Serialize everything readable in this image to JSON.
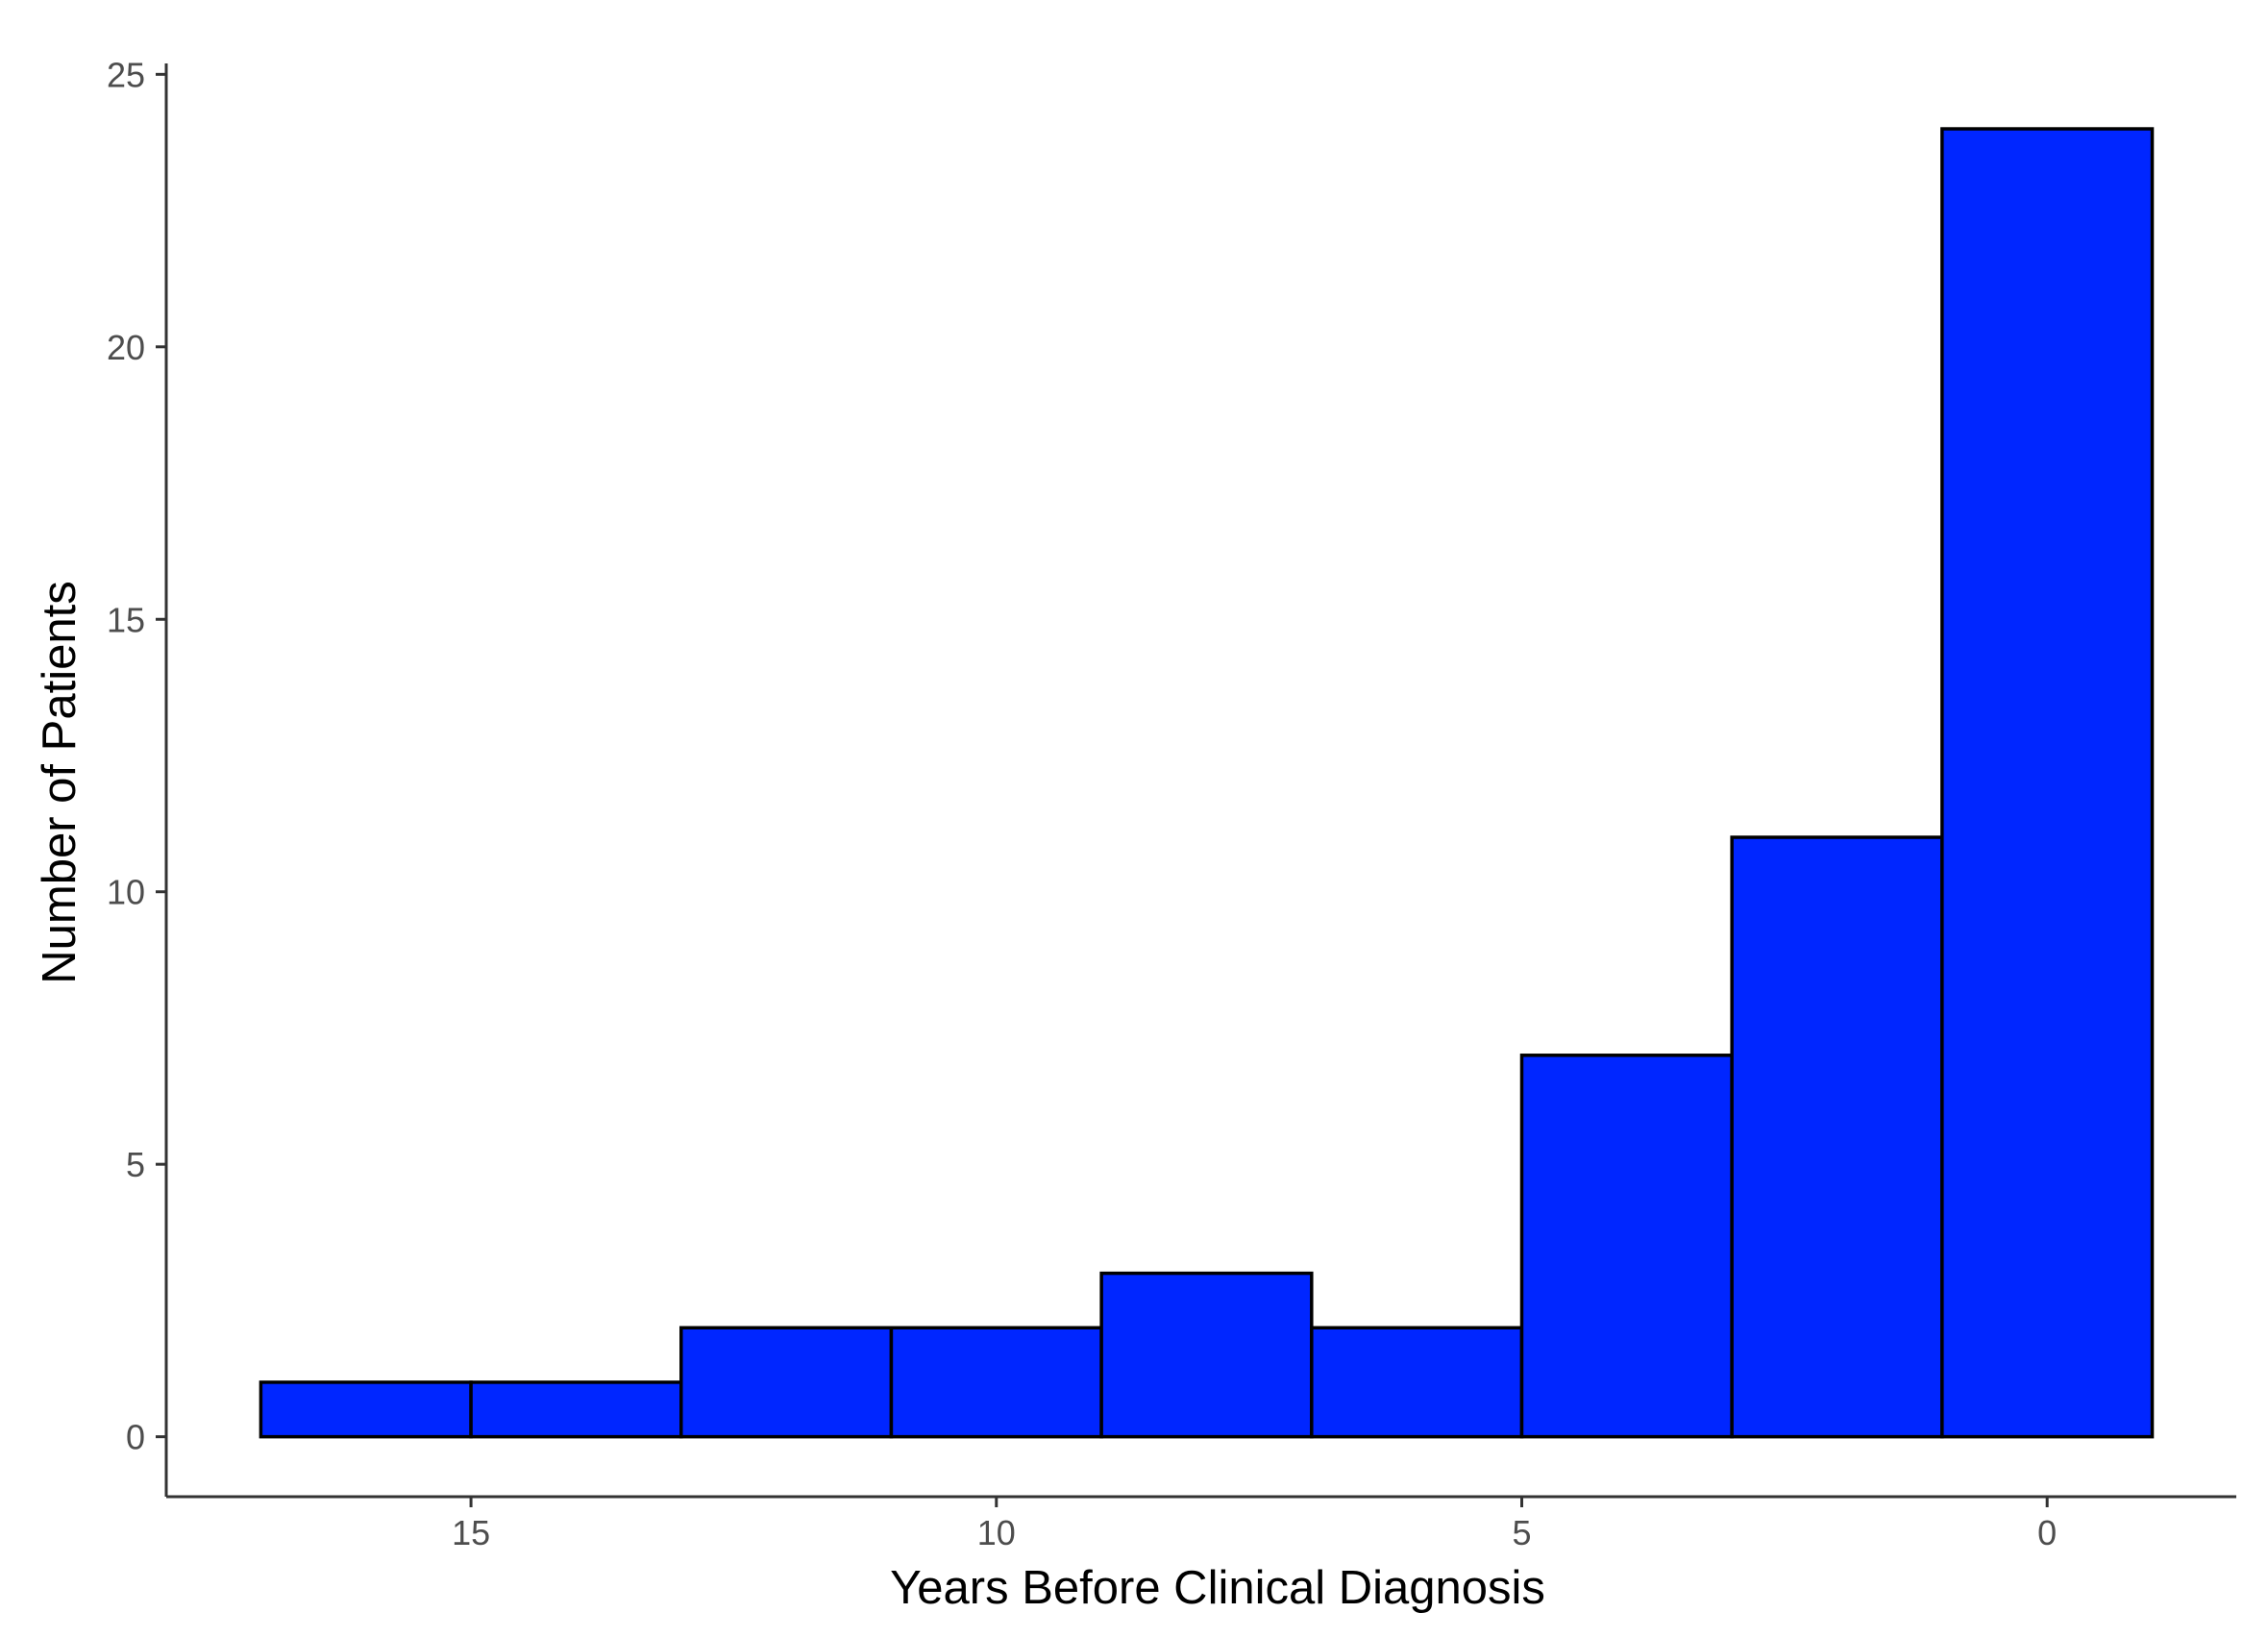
{
  "chart_data": {
    "type": "bar",
    "subtype": "histogram",
    "xlabel": "Years Before Clinical Diagnosis",
    "ylabel": "Number of Patients",
    "x_reversed": true,
    "xlim": [
      17.9,
      -1.8
    ],
    "ylim": [
      -1.1,
      25.2
    ],
    "x_ticks": [
      15,
      10,
      5,
      0
    ],
    "y_ticks": [
      0,
      5,
      10,
      15,
      20,
      25
    ],
    "bins": [
      {
        "x_start": 17,
        "x_end": 15,
        "count": 1
      },
      {
        "x_start": 15,
        "x_end": 13,
        "count": 1
      },
      {
        "x_start": 13,
        "x_end": 11,
        "count": 2
      },
      {
        "x_start": 11,
        "x_end": 9,
        "count": 2
      },
      {
        "x_start": 9,
        "x_end": 7,
        "count": 3
      },
      {
        "x_start": 7,
        "x_end": 5,
        "count": 2
      },
      {
        "x_start": 5,
        "x_end": 3,
        "count": 7
      },
      {
        "x_start": 3,
        "x_end": 1,
        "count": 11
      },
      {
        "x_start": 1,
        "x_end": -1,
        "count": 24
      }
    ],
    "bar_fill": "#0026ff",
    "bar_stroke": "#000000",
    "axis_color": "#333333",
    "grid": false,
    "legend": "none"
  }
}
